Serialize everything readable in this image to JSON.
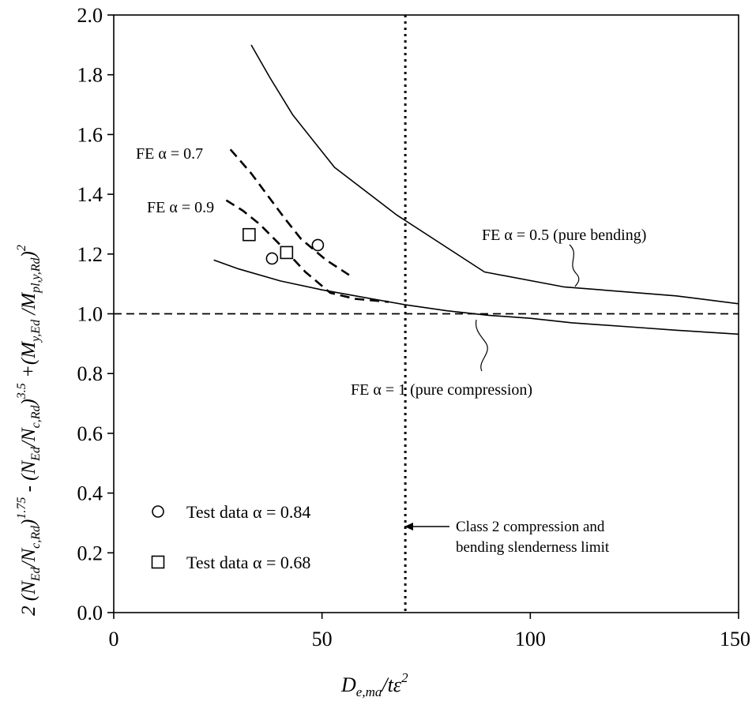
{
  "chart_data": {
    "type": "line",
    "xlabel": {
      "base": "D",
      "sub": "e,ma",
      "mid": "/tε",
      "sup": "2"
    },
    "ylabel": {
      "pre": "2 (N",
      "sub1": "Ed",
      "mid1": "/N",
      "sub2": "c,Rd",
      "mid2": ")",
      "sup1": "1.75",
      "mid3": " - (N",
      "sub3": "Ed",
      "mid4": "/N",
      "sub4": "c,Rd",
      "mid5": ")",
      "sup2": "3.5",
      "mid6": " +(M",
      "sub5": "y,Ed",
      "mid7": " /M",
      "sub6": "pl,y,Rd",
      "mid8": ")",
      "sup3": "2"
    },
    "xlim": [
      0,
      150
    ],
    "ylim": [
      0,
      2.0
    ],
    "xticks": [
      {
        "value": 0,
        "label": "0"
      },
      {
        "value": 50,
        "label": "50"
      },
      {
        "value": 100,
        "label": "100"
      },
      {
        "value": 150,
        "label": "150"
      }
    ],
    "yticks": [
      {
        "value": 0.0,
        "label": "0.0"
      },
      {
        "value": 0.2,
        "label": "0.2"
      },
      {
        "value": 0.4,
        "label": "0.4"
      },
      {
        "value": 0.6,
        "label": "0.6"
      },
      {
        "value": 0.8,
        "label": "0.8"
      },
      {
        "value": 1.0,
        "label": "1.0"
      },
      {
        "value": 1.2,
        "label": "1.2"
      },
      {
        "value": 1.4,
        "label": "1.4"
      },
      {
        "value": 1.6,
        "label": "1.6"
      },
      {
        "value": 1.8,
        "label": "1.8"
      },
      {
        "value": 2.0,
        "label": "2.0"
      }
    ],
    "grid": false,
    "series": [
      {
        "name": "FE α = 0.5 (pure bending)",
        "style": "solid",
        "x": [
          33,
          37.5,
          43,
          53,
          68,
          89,
          108,
          135,
          152
        ],
        "y": [
          1.9,
          1.79,
          1.665,
          1.49,
          1.33,
          1.14,
          1.09,
          1.06,
          1.03
        ]
      },
      {
        "name": "FE α = 1 (pure compression)",
        "style": "solid",
        "x": [
          24,
          30,
          40,
          50,
          60,
          70,
          80,
          90,
          100,
          110,
          125,
          135,
          152
        ],
        "y": [
          1.18,
          1.15,
          1.11,
          1.08,
          1.055,
          1.03,
          1.01,
          0.995,
          0.985,
          0.97,
          0.955,
          0.945,
          0.93
        ]
      },
      {
        "name": "FE α = 0.7",
        "style": "dashed",
        "x": [
          28,
          33,
          37,
          41,
          45,
          51,
          56.5
        ],
        "y": [
          1.55,
          1.47,
          1.395,
          1.32,
          1.25,
          1.18,
          1.13
        ]
      },
      {
        "name": "FE α = 0.9",
        "style": "dashed",
        "x": [
          27,
          31,
          35,
          40,
          46,
          52,
          58,
          66
        ],
        "y": [
          1.38,
          1.345,
          1.3,
          1.23,
          1.14,
          1.07,
          1.05,
          1.04
        ]
      }
    ],
    "scatter": [
      {
        "name": "Test data α = 0.84",
        "marker": "circle",
        "x": [
          38,
          49
        ],
        "y": [
          1.185,
          1.23
        ]
      },
      {
        "name": "Test data α = 0.68",
        "marker": "square",
        "x": [
          32.5,
          41.5
        ],
        "y": [
          1.265,
          1.205
        ]
      }
    ],
    "reference_lines": [
      {
        "orientation": "horizontal",
        "value": 1.0,
        "style": "dashed"
      },
      {
        "orientation": "vertical",
        "value": 70,
        "style": "dotted"
      }
    ],
    "annotations": {
      "fe07": "FE α = 0.7",
      "fe09": "FE α = 0.9",
      "fe05": "FE α = 0.5 (pure bending)",
      "fe1": "FE α = 1 (pure compression)",
      "class2_line1": "Class 2 compression and",
      "class2_line2": "bending slenderness limit"
    },
    "legend": {
      "placement": "bottom-left",
      "items": [
        {
          "marker": "circle",
          "label": "Test data α = 0.84"
        },
        {
          "marker": "square",
          "label": "Test data α = 0.68"
        }
      ]
    }
  }
}
